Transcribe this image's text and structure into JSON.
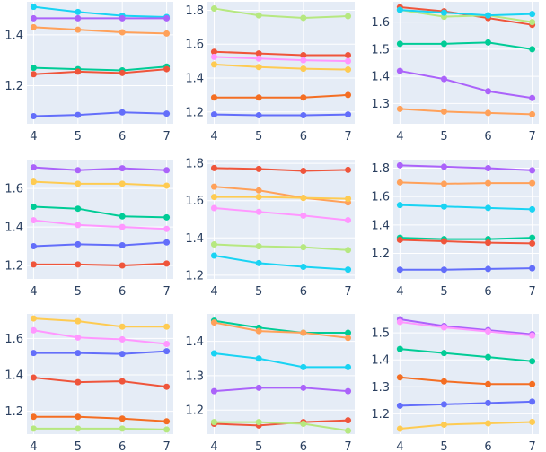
{
  "chart_data": [
    {
      "type": "line",
      "x": [
        4,
        5,
        6,
        7
      ],
      "xlim": [
        3.85,
        7.15
      ],
      "ylim": [
        1.05,
        1.53
      ],
      "yticks": [
        1.2,
        1.4
      ],
      "grid": true,
      "series": [
        {
          "color": "#19d3f3",
          "values": [
            1.51,
            1.49,
            1.475,
            1.47
          ]
        },
        {
          "color": "#ab63fa",
          "values": [
            1.465,
            1.465,
            1.465,
            1.465
          ]
        },
        {
          "color": "#ffa15a",
          "values": [
            1.43,
            1.42,
            1.41,
            1.405
          ]
        },
        {
          "color": "#00cc96",
          "values": [
            1.27,
            1.265,
            1.26,
            1.275
          ]
        },
        {
          "color": "#ef553b",
          "values": [
            1.245,
            1.255,
            1.25,
            1.265
          ]
        },
        {
          "color": "#636efa",
          "values": [
            1.08,
            1.085,
            1.095,
            1.09
          ]
        }
      ]
    },
    {
      "type": "line",
      "x": [
        4,
        5,
        6,
        7
      ],
      "xlim": [
        3.85,
        7.15
      ],
      "ylim": [
        1.13,
        1.85
      ],
      "yticks": [
        1.2,
        1.4,
        1.6,
        1.8
      ],
      "grid": true,
      "series": [
        {
          "color": "#b6e880",
          "values": [
            1.81,
            1.77,
            1.755,
            1.765
          ]
        },
        {
          "color": "#ef553b",
          "values": [
            1.555,
            1.545,
            1.535,
            1.535
          ]
        },
        {
          "color": "#ff97ff",
          "values": [
            1.525,
            1.515,
            1.505,
            1.5
          ]
        },
        {
          "color": "#fecb52",
          "values": [
            1.48,
            1.465,
            1.455,
            1.45
          ]
        },
        {
          "color": "#f46e23",
          "values": [
            1.285,
            1.285,
            1.285,
            1.3
          ]
        },
        {
          "color": "#636efa",
          "values": [
            1.185,
            1.18,
            1.18,
            1.185
          ]
        }
      ]
    },
    {
      "type": "line",
      "x": [
        4,
        5,
        6,
        7
      ],
      "xlim": [
        3.85,
        7.15
      ],
      "ylim": [
        1.225,
        1.675
      ],
      "yticks": [
        1.3,
        1.4,
        1.5,
        1.6
      ],
      "grid": true,
      "series": [
        {
          "color": "#ef553b",
          "values": [
            1.655,
            1.64,
            1.615,
            1.59
          ]
        },
        {
          "color": "#b6e880",
          "values": [
            1.645,
            1.62,
            1.625,
            1.6
          ]
        },
        {
          "color": "#19d3f3",
          "values": [
            1.645,
            1.635,
            1.625,
            1.63
          ]
        },
        {
          "color": "#00cc96",
          "values": [
            1.52,
            1.52,
            1.525,
            1.5
          ]
        },
        {
          "color": "#ab63fa",
          "values": [
            1.42,
            1.39,
            1.345,
            1.32
          ]
        },
        {
          "color": "#ffa15a",
          "values": [
            1.28,
            1.27,
            1.265,
            1.26
          ]
        }
      ]
    },
    {
      "type": "line",
      "x": [
        4,
        5,
        6,
        7
      ],
      "xlim": [
        3.85,
        7.15
      ],
      "ylim": [
        1.13,
        1.75
      ],
      "yticks": [
        1.2,
        1.4,
        1.6
      ],
      "grid": true,
      "series": [
        {
          "color": "#ab63fa",
          "values": [
            1.71,
            1.695,
            1.705,
            1.695
          ]
        },
        {
          "color": "#fecb52",
          "values": [
            1.635,
            1.625,
            1.625,
            1.615
          ]
        },
        {
          "color": "#00cc96",
          "values": [
            1.505,
            1.495,
            1.455,
            1.45
          ]
        },
        {
          "color": "#ff97ff",
          "values": [
            1.435,
            1.41,
            1.4,
            1.39
          ]
        },
        {
          "color": "#636efa",
          "values": [
            1.3,
            1.31,
            1.305,
            1.32
          ]
        },
        {
          "color": "#ef553b",
          "values": [
            1.205,
            1.205,
            1.2,
            1.21
          ]
        }
      ]
    },
    {
      "type": "line",
      "x": [
        4,
        5,
        6,
        7
      ],
      "xlim": [
        3.85,
        7.15
      ],
      "ylim": [
        1.18,
        1.82
      ],
      "yticks": [
        1.2,
        1.4,
        1.6,
        1.8
      ],
      "grid": true,
      "series": [
        {
          "color": "#ef553b",
          "values": [
            1.775,
            1.77,
            1.76,
            1.765
          ]
        },
        {
          "color": "#ffa15a",
          "values": [
            1.675,
            1.655,
            1.615,
            1.59
          ]
        },
        {
          "color": "#fecb52",
          "values": [
            1.62,
            1.62,
            1.615,
            1.61
          ]
        },
        {
          "color": "#ff97ff",
          "values": [
            1.56,
            1.54,
            1.52,
            1.495
          ]
        },
        {
          "color": "#b6e880",
          "values": [
            1.365,
            1.355,
            1.35,
            1.335
          ]
        },
        {
          "color": "#19d3f3",
          "values": [
            1.305,
            1.265,
            1.245,
            1.23
          ]
        }
      ]
    },
    {
      "type": "line",
      "x": [
        4,
        5,
        6,
        7
      ],
      "xlim": [
        3.85,
        7.15
      ],
      "ylim": [
        1.02,
        1.86
      ],
      "yticks": [
        1.2,
        1.4,
        1.6,
        1.8
      ],
      "grid": true,
      "series": [
        {
          "color": "#ab63fa",
          "values": [
            1.82,
            1.81,
            1.8,
            1.785
          ]
        },
        {
          "color": "#ffa15a",
          "values": [
            1.7,
            1.69,
            1.695,
            1.695
          ]
        },
        {
          "color": "#19d3f3",
          "values": [
            1.54,
            1.53,
            1.52,
            1.51
          ]
        },
        {
          "color": "#00cc96",
          "values": [
            1.31,
            1.3,
            1.3,
            1.31
          ]
        },
        {
          "color": "#ef553b",
          "values": [
            1.295,
            1.285,
            1.275,
            1.27
          ]
        },
        {
          "color": "#636efa",
          "values": [
            1.085,
            1.085,
            1.09,
            1.095
          ]
        }
      ]
    },
    {
      "type": "line",
      "x": [
        4,
        5,
        6,
        7
      ],
      "xlim": [
        3.85,
        7.15
      ],
      "ylim": [
        1.075,
        1.735
      ],
      "yticks": [
        1.2,
        1.4,
        1.6
      ],
      "grid": true,
      "series": [
        {
          "color": "#fecb52",
          "values": [
            1.71,
            1.695,
            1.665,
            1.665
          ]
        },
        {
          "color": "#ff97ff",
          "values": [
            1.645,
            1.605,
            1.595,
            1.57
          ]
        },
        {
          "color": "#636efa",
          "values": [
            1.52,
            1.52,
            1.515,
            1.53
          ]
        },
        {
          "color": "#ef553b",
          "values": [
            1.385,
            1.36,
            1.365,
            1.335
          ]
        },
        {
          "color": "#f46e23",
          "values": [
            1.17,
            1.17,
            1.16,
            1.145
          ]
        },
        {
          "color": "#b6e880",
          "values": [
            1.105,
            1.105,
            1.105,
            1.1
          ]
        }
      ]
    },
    {
      "type": "line",
      "x": [
        4,
        5,
        6,
        7
      ],
      "xlim": [
        3.85,
        7.15
      ],
      "ylim": [
        1.13,
        1.48
      ],
      "yticks": [
        1.2,
        1.3,
        1.4
      ],
      "grid": true,
      "series": [
        {
          "color": "#00cc96",
          "values": [
            1.46,
            1.44,
            1.425,
            1.425
          ]
        },
        {
          "color": "#ffa15a",
          "values": [
            1.455,
            1.43,
            1.425,
            1.41
          ]
        },
        {
          "color": "#19d3f3",
          "values": [
            1.365,
            1.35,
            1.325,
            1.325
          ]
        },
        {
          "color": "#ab63fa",
          "values": [
            1.255,
            1.265,
            1.265,
            1.255
          ]
        },
        {
          "color": "#ef553b",
          "values": [
            1.16,
            1.155,
            1.165,
            1.17
          ]
        },
        {
          "color": "#b6e880",
          "values": [
            1.165,
            1.165,
            1.16,
            1.14
          ]
        }
      ]
    },
    {
      "type": "line",
      "x": [
        4,
        5,
        6,
        7
      ],
      "xlim": [
        3.85,
        7.15
      ],
      "ylim": [
        1.125,
        1.57
      ],
      "yticks": [
        1.2,
        1.3,
        1.4,
        1.5
      ],
      "grid": true,
      "series": [
        {
          "color": "#ab63fa",
          "values": [
            1.55,
            1.525,
            1.51,
            1.495
          ]
        },
        {
          "color": "#ff97ff",
          "values": [
            1.54,
            1.52,
            1.505,
            1.49
          ]
        },
        {
          "color": "#00cc96",
          "values": [
            1.44,
            1.425,
            1.41,
            1.395
          ]
        },
        {
          "color": "#f46e23",
          "values": [
            1.335,
            1.32,
            1.31,
            1.31
          ]
        },
        {
          "color": "#636efa",
          "values": [
            1.23,
            1.235,
            1.24,
            1.245
          ]
        },
        {
          "color": "#fecb52",
          "values": [
            1.145,
            1.16,
            1.165,
            1.17
          ]
        }
      ]
    }
  ]
}
